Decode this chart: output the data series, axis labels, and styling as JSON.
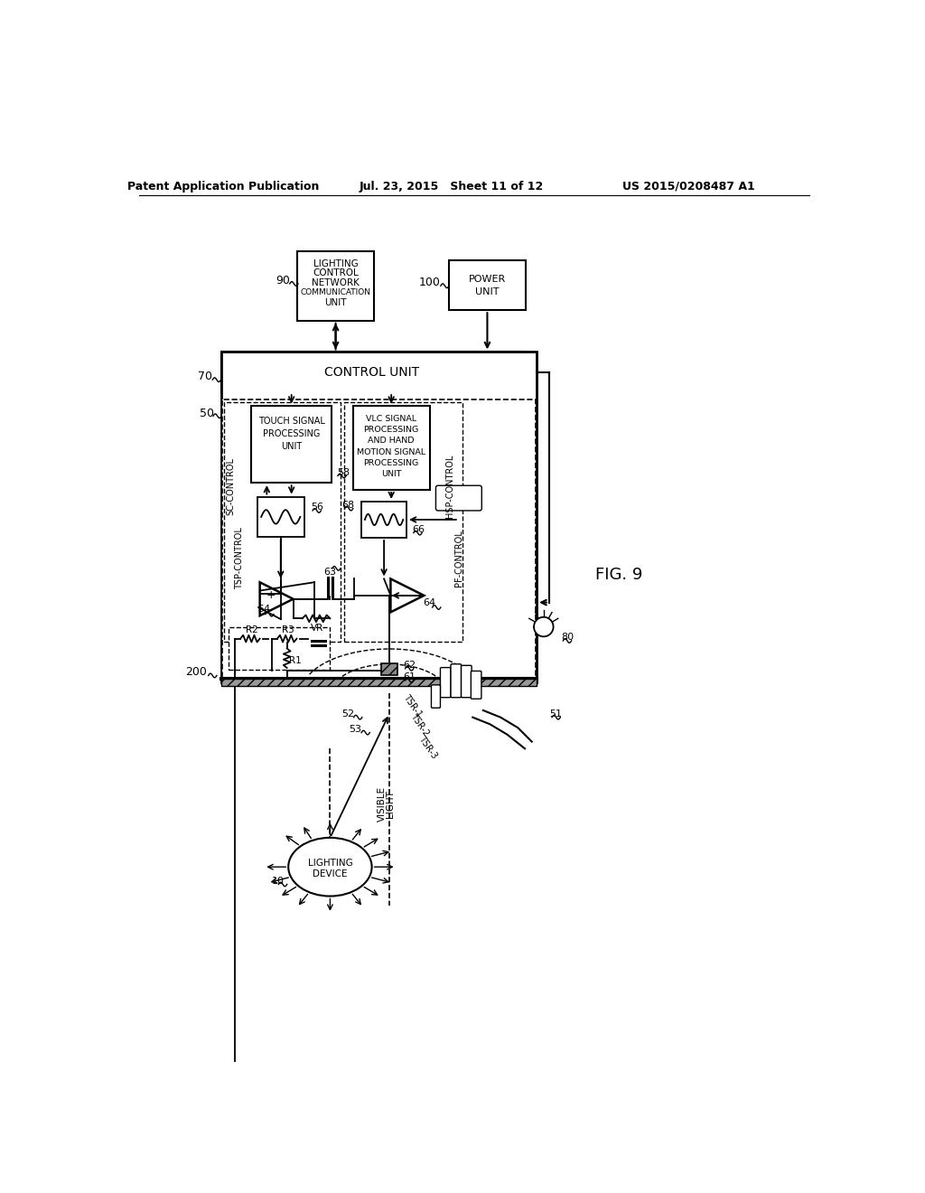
{
  "bg_color": "#ffffff",
  "line_color": "#000000",
  "header_left": "Patent Application Publication",
  "header_center": "Jul. 23, 2015   Sheet 11 of 12",
  "header_right": "US 2015/0208487 A1",
  "fig_label": "FIG. 9"
}
